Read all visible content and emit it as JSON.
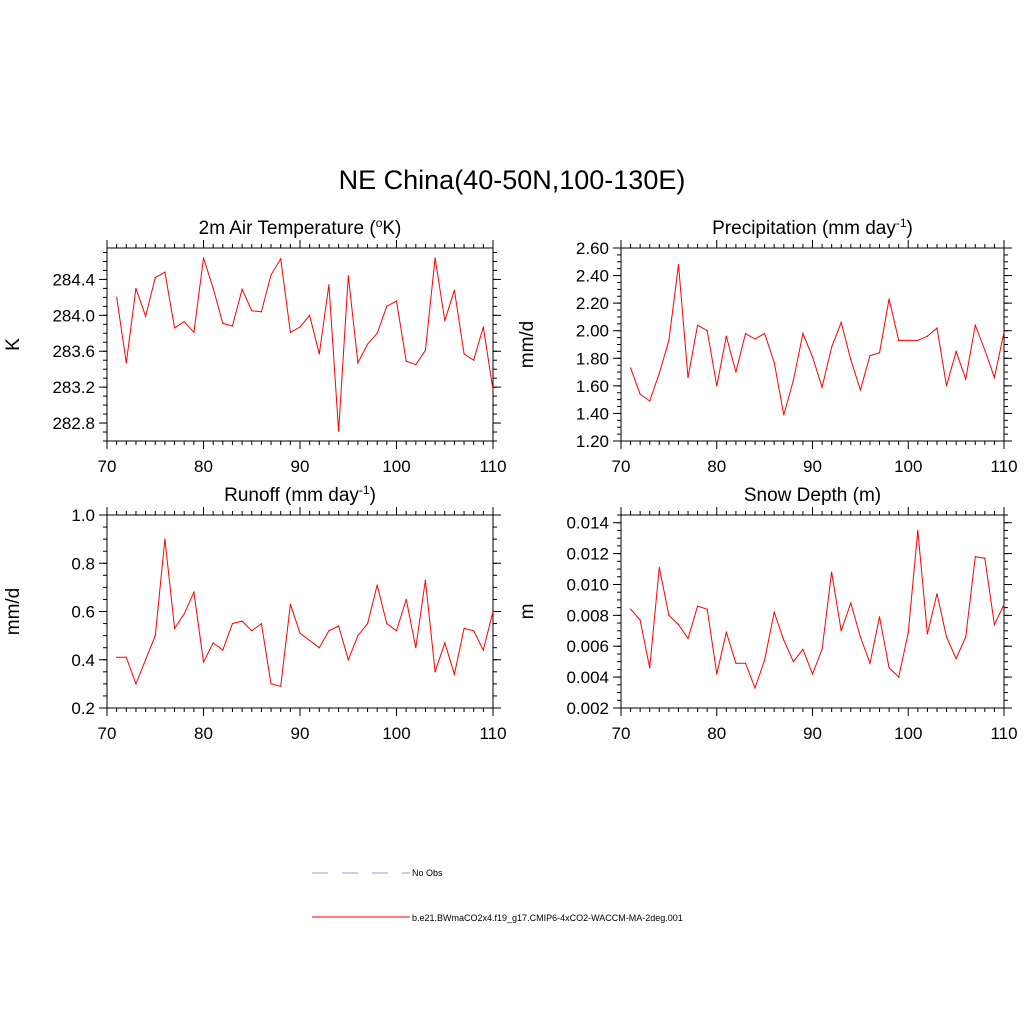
{
  "title": "NE China(40-50N,100-130E)",
  "colors": {
    "model": "#ff0000",
    "obs": "#9999dd",
    "axis": "#000000"
  },
  "legend": {
    "obs_label": "No Obs",
    "model_label": "b.e21.BWmaCO2x4.f19_g17.CMIP6-4xCO2-WACCM-MA-2deg.001"
  },
  "chart_data": [
    {
      "type": "line",
      "title": "2m Air Temperature",
      "title_unit": "K",
      "title_unit_sup": "o",
      "ylabel": "K",
      "xlim": [
        70,
        110
      ],
      "ylim": [
        282.6,
        284.75
      ],
      "xticks": [
        70,
        80,
        90,
        100,
        110
      ],
      "yticks": [
        282.8,
        283.2,
        283.6,
        284.0,
        284.4
      ],
      "ytick_labels": [
        "282.8",
        "283.2",
        "283.6",
        "284.0",
        "284.4"
      ],
      "yminor_step": 0.1,
      "series": [
        {
          "name": "b.e21.BWmaCO2x4.f19_g17.CMIP6-4xCO2-WACCM-MA-2deg.001",
          "x": [
            71,
            72,
            73,
            74,
            75,
            76,
            77,
            78,
            79,
            80,
            81,
            82,
            83,
            84,
            85,
            86,
            87,
            88,
            89,
            90,
            91,
            92,
            93,
            94,
            95,
            96,
            97,
            98,
            99,
            100,
            101,
            102,
            103,
            104,
            105,
            106,
            107,
            108,
            109,
            110
          ],
          "values": [
            284.2,
            283.47,
            284.3,
            283.99,
            284.42,
            284.48,
            283.86,
            283.93,
            283.81,
            284.64,
            284.3,
            283.91,
            283.88,
            284.29,
            284.05,
            284.04,
            284.45,
            284.63,
            283.81,
            283.87,
            284.0,
            283.57,
            284.34,
            282.71,
            284.44,
            283.47,
            283.68,
            283.8,
            284.1,
            284.16,
            283.49,
            283.45,
            283.61,
            284.64,
            283.94,
            284.28,
            283.57,
            283.5,
            283.87,
            283.17
          ]
        }
      ]
    },
    {
      "type": "line",
      "title": "Precipitation",
      "title_unit": "mm day",
      "title_unit_sup": "-1",
      "ylabel": "mm/d",
      "xlim": [
        70,
        110
      ],
      "ylim": [
        1.2,
        2.6
      ],
      "xticks": [
        70,
        80,
        90,
        100,
        110
      ],
      "yticks": [
        1.2,
        1.4,
        1.6,
        1.8,
        2.0,
        2.2,
        2.4,
        2.6
      ],
      "ytick_labels": [
        "1.20",
        "1.40",
        "1.60",
        "1.80",
        "2.00",
        "2.20",
        "2.40",
        "2.60"
      ],
      "yminor_step": 0.05,
      "series": [
        {
          "name": "b.e21.BWmaCO2x4.f19_g17.CMIP6-4xCO2-WACCM-MA-2deg.001",
          "x": [
            71,
            72,
            73,
            74,
            75,
            76,
            77,
            78,
            79,
            80,
            81,
            82,
            83,
            84,
            85,
            86,
            87,
            88,
            89,
            90,
            91,
            92,
            93,
            94,
            95,
            96,
            97,
            98,
            99,
            100,
            101,
            102,
            103,
            104,
            105,
            106,
            107,
            108,
            109,
            110
          ],
          "values": [
            1.73,
            1.54,
            1.49,
            1.69,
            1.93,
            2.48,
            1.66,
            2.04,
            2.0,
            1.6,
            1.96,
            1.7,
            1.98,
            1.94,
            1.98,
            1.77,
            1.39,
            1.64,
            1.98,
            1.81,
            1.59,
            1.88,
            2.06,
            1.79,
            1.57,
            1.82,
            1.84,
            2.23,
            1.93,
            1.93,
            1.93,
            1.96,
            2.02,
            1.6,
            1.85,
            1.65,
            2.04,
            1.86,
            1.66,
            1.99
          ]
        }
      ]
    },
    {
      "type": "line",
      "title": "Runoff",
      "title_unit": "mm day",
      "title_unit_sup": "-1",
      "ylabel": "mm/d",
      "xlim": [
        70,
        110
      ],
      "ylim": [
        0.2,
        1.0
      ],
      "xticks": [
        70,
        80,
        90,
        100,
        110
      ],
      "yticks": [
        0.2,
        0.4,
        0.6,
        0.8,
        1.0
      ],
      "ytick_labels": [
        "0.2",
        "0.4",
        "0.6",
        "0.8",
        "1.0"
      ],
      "yminor_step": 0.05,
      "series": [
        {
          "name": "b.e21.BWmaCO2x4.f19_g17.CMIP6-4xCO2-WACCM-MA-2deg.001",
          "x": [
            71,
            72,
            73,
            74,
            75,
            76,
            77,
            78,
            79,
            80,
            81,
            82,
            83,
            84,
            85,
            86,
            87,
            88,
            89,
            90,
            91,
            92,
            93,
            94,
            95,
            96,
            97,
            98,
            99,
            100,
            101,
            102,
            103,
            104,
            105,
            106,
            107,
            108,
            109,
            110
          ],
          "values": [
            0.41,
            0.41,
            0.3,
            0.4,
            0.5,
            0.9,
            0.53,
            0.59,
            0.68,
            0.39,
            0.47,
            0.44,
            0.55,
            0.56,
            0.52,
            0.55,
            0.3,
            0.29,
            0.63,
            0.51,
            0.48,
            0.45,
            0.52,
            0.54,
            0.4,
            0.5,
            0.55,
            0.71,
            0.55,
            0.52,
            0.65,
            0.45,
            0.73,
            0.35,
            0.47,
            0.34,
            0.53,
            0.52,
            0.44,
            0.6
          ]
        }
      ]
    },
    {
      "type": "line",
      "title": "Snow Depth",
      "title_unit": "m",
      "title_unit_sup": "",
      "ylabel": "m",
      "xlim": [
        70,
        110
      ],
      "ylim": [
        0.002,
        0.0145
      ],
      "xticks": [
        70,
        80,
        90,
        100,
        110
      ],
      "yticks": [
        0.002,
        0.004,
        0.006,
        0.008,
        0.01,
        0.012,
        0.014
      ],
      "ytick_labels": [
        "0.002",
        "0.004",
        "0.006",
        "0.008",
        "0.010",
        "0.012",
        "0.014"
      ],
      "yminor_step": 0.0005,
      "series": [
        {
          "name": "b.e21.BWmaCO2x4.f19_g17.CMIP6-4xCO2-WACCM-MA-2deg.001",
          "x": [
            71,
            72,
            73,
            74,
            75,
            76,
            77,
            78,
            79,
            80,
            81,
            82,
            83,
            84,
            85,
            86,
            87,
            88,
            89,
            90,
            91,
            92,
            93,
            94,
            95,
            96,
            97,
            98,
            99,
            100,
            101,
            102,
            103,
            104,
            105,
            106,
            107,
            108,
            109,
            110
          ],
          "values": [
            0.0084,
            0.0077,
            0.0046,
            0.0111,
            0.008,
            0.0074,
            0.0065,
            0.0086,
            0.0084,
            0.0042,
            0.0069,
            0.0049,
            0.0049,
            0.0033,
            0.0051,
            0.0082,
            0.0064,
            0.005,
            0.0058,
            0.0042,
            0.0058,
            0.0108,
            0.007,
            0.0088,
            0.0066,
            0.0049,
            0.0079,
            0.0046,
            0.004,
            0.0069,
            0.0135,
            0.0068,
            0.0094,
            0.0066,
            0.0052,
            0.0066,
            0.0118,
            0.0117,
            0.0074,
            0.0087
          ]
        }
      ]
    }
  ]
}
